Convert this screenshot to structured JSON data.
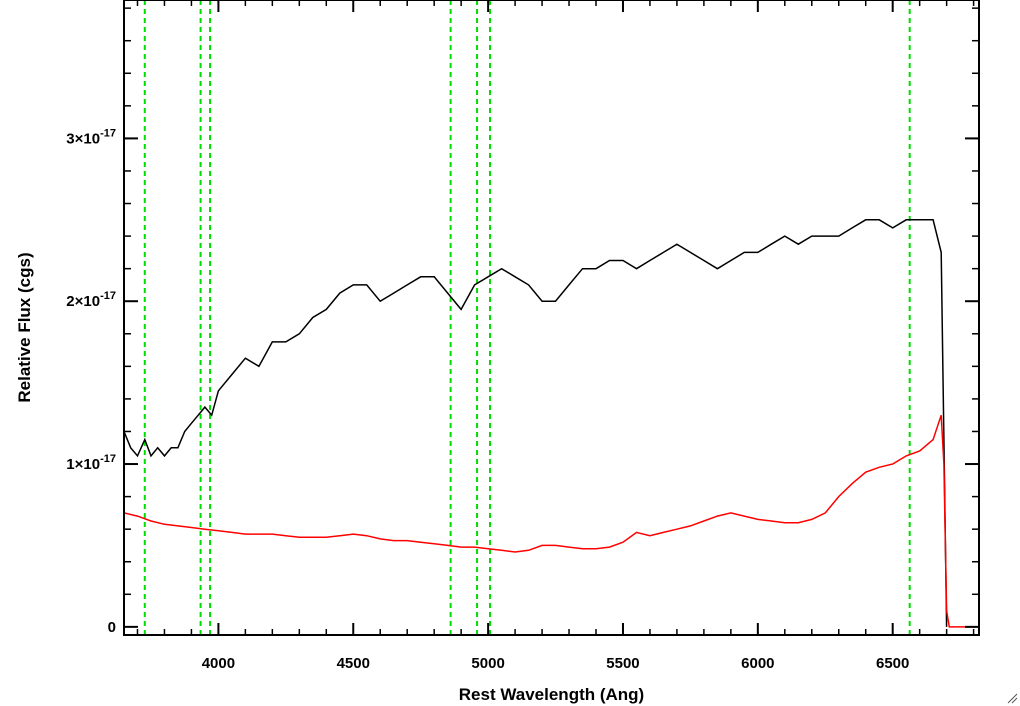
{
  "chart_data": {
    "type": "line",
    "title": "",
    "xlabel": "Rest Wavelength (Ang)",
    "ylabel": "Relative Flux (cgs)",
    "xlim": [
      3650,
      6820
    ],
    "ylim": [
      -5e-19,
      3.85e-17
    ],
    "x_ticks": [
      {
        "value": 4000,
        "label": "4000"
      },
      {
        "value": 4500,
        "label": "4500"
      },
      {
        "value": 5000,
        "label": "5000"
      },
      {
        "value": 5500,
        "label": "5500"
      },
      {
        "value": 6000,
        "label": "6000"
      },
      {
        "value": 6500,
        "label": "6500"
      }
    ],
    "y_ticks": [
      {
        "value": 0,
        "mantissa": "0",
        "exponent": ""
      },
      {
        "value": 1e-17,
        "mantissa": "1×10",
        "exponent": "-17"
      },
      {
        "value": 2e-17,
        "mantissa": "2×10",
        "exponent": "-17"
      },
      {
        "value": 3e-17,
        "mantissa": "3×10",
        "exponent": "-17"
      }
    ],
    "grid": false,
    "reference_lines": {
      "color": "#00dd00",
      "style": "dashed",
      "x": [
        3727,
        3934,
        3969,
        4861,
        4959,
        5007,
        6563
      ]
    },
    "series": [
      {
        "color": "#000000",
        "x": [
          3650,
          3675,
          3700,
          3727,
          3750,
          3775,
          3800,
          3825,
          3850,
          3875,
          3900,
          3925,
          3950,
          3975,
          4000,
          4050,
          4100,
          4150,
          4200,
          4250,
          4300,
          4350,
          4400,
          4450,
          4500,
          4550,
          4600,
          4650,
          4700,
          4750,
          4800,
          4850,
          4900,
          4950,
          5000,
          5050,
          5100,
          5150,
          5200,
          5250,
          5300,
          5350,
          5400,
          5450,
          5500,
          5550,
          5600,
          5650,
          5700,
          5750,
          5800,
          5850,
          5900,
          5950,
          6000,
          6050,
          6100,
          6150,
          6200,
          6250,
          6300,
          6350,
          6400,
          6450,
          6500,
          6550,
          6600,
          6650,
          6680,
          6700
        ],
        "y": [
          1.2e-17,
          1.1e-17,
          1.05e-17,
          1.15e-17,
          1.05e-17,
          1.1e-17,
          1.05e-17,
          1.1e-17,
          1.1e-17,
          1.2e-17,
          1.25e-17,
          1.3e-17,
          1.35e-17,
          1.3e-17,
          1.45e-17,
          1.55e-17,
          1.65e-17,
          1.6e-17,
          1.75e-17,
          1.75e-17,
          1.8e-17,
          1.9e-17,
          1.95e-17,
          2.05e-17,
          2.1e-17,
          2.1e-17,
          2e-17,
          2.05e-17,
          2.1e-17,
          2.15e-17,
          2.15e-17,
          2.05e-17,
          1.95e-17,
          2.1e-17,
          2.15e-17,
          2.2e-17,
          2.15e-17,
          2.1e-17,
          2e-17,
          2e-17,
          2.1e-17,
          2.2e-17,
          2.2e-17,
          2.25e-17,
          2.25e-17,
          2.2e-17,
          2.25e-17,
          2.3e-17,
          2.35e-17,
          2.3e-17,
          2.25e-17,
          2.2e-17,
          2.25e-17,
          2.3e-17,
          2.3e-17,
          2.35e-17,
          2.4e-17,
          2.35e-17,
          2.4e-17,
          2.4e-17,
          2.4e-17,
          2.45e-17,
          2.5e-17,
          2.5e-17,
          2.45e-17,
          2.5e-17,
          2.5e-17,
          2.5e-17,
          2.3e-17,
          0.0
        ]
      },
      {
        "color": "#ff0000",
        "x": [
          3650,
          3700,
          3750,
          3800,
          3850,
          3900,
          3950,
          4000,
          4050,
          4100,
          4150,
          4200,
          4250,
          4300,
          4350,
          4400,
          4450,
          4500,
          4550,
          4600,
          4650,
          4700,
          4750,
          4800,
          4850,
          4900,
          4950,
          5000,
          5050,
          5100,
          5150,
          5200,
          5250,
          5300,
          5350,
          5400,
          5450,
          5500,
          5550,
          5600,
          5650,
          5700,
          5750,
          5800,
          5850,
          5900,
          5950,
          6000,
          6050,
          6100,
          6150,
          6200,
          6250,
          6300,
          6350,
          6400,
          6450,
          6500,
          6550,
          6600,
          6650,
          6680,
          6690,
          6700,
          6710,
          6750,
          6800,
          6820
        ],
        "y": [
          7e-18,
          6.8e-18,
          6.5e-18,
          6.3e-18,
          6.2e-18,
          6.1e-18,
          6e-18,
          5.9e-18,
          5.8e-18,
          5.7e-18,
          5.7e-18,
          5.7e-18,
          5.6e-18,
          5.5e-18,
          5.5e-18,
          5.5e-18,
          5.6e-18,
          5.7e-18,
          5.6e-18,
          5.4e-18,
          5.3e-18,
          5.3e-18,
          5.2e-18,
          5.1e-18,
          5e-18,
          4.9e-18,
          4.9e-18,
          4.8e-18,
          4.7e-18,
          4.6e-18,
          4.7e-18,
          5e-18,
          5e-18,
          4.9e-18,
          4.8e-18,
          4.8e-18,
          4.9e-18,
          5.2e-18,
          5.8e-18,
          5.6e-18,
          5.8e-18,
          6e-18,
          6.2e-18,
          6.5e-18,
          6.8e-18,
          7e-18,
          6.8e-18,
          6.6e-18,
          6.5e-18,
          6.4e-18,
          6.4e-18,
          6.6e-18,
          7e-18,
          8e-18,
          8.8e-18,
          9.5e-18,
          9.8e-18,
          1e-17,
          1.05e-17,
          1.08e-17,
          1.15e-17,
          1.3e-17,
          1e-17,
          1e-18,
          0.0,
          0.0,
          0.0,
          0.0
        ]
      }
    ]
  }
}
